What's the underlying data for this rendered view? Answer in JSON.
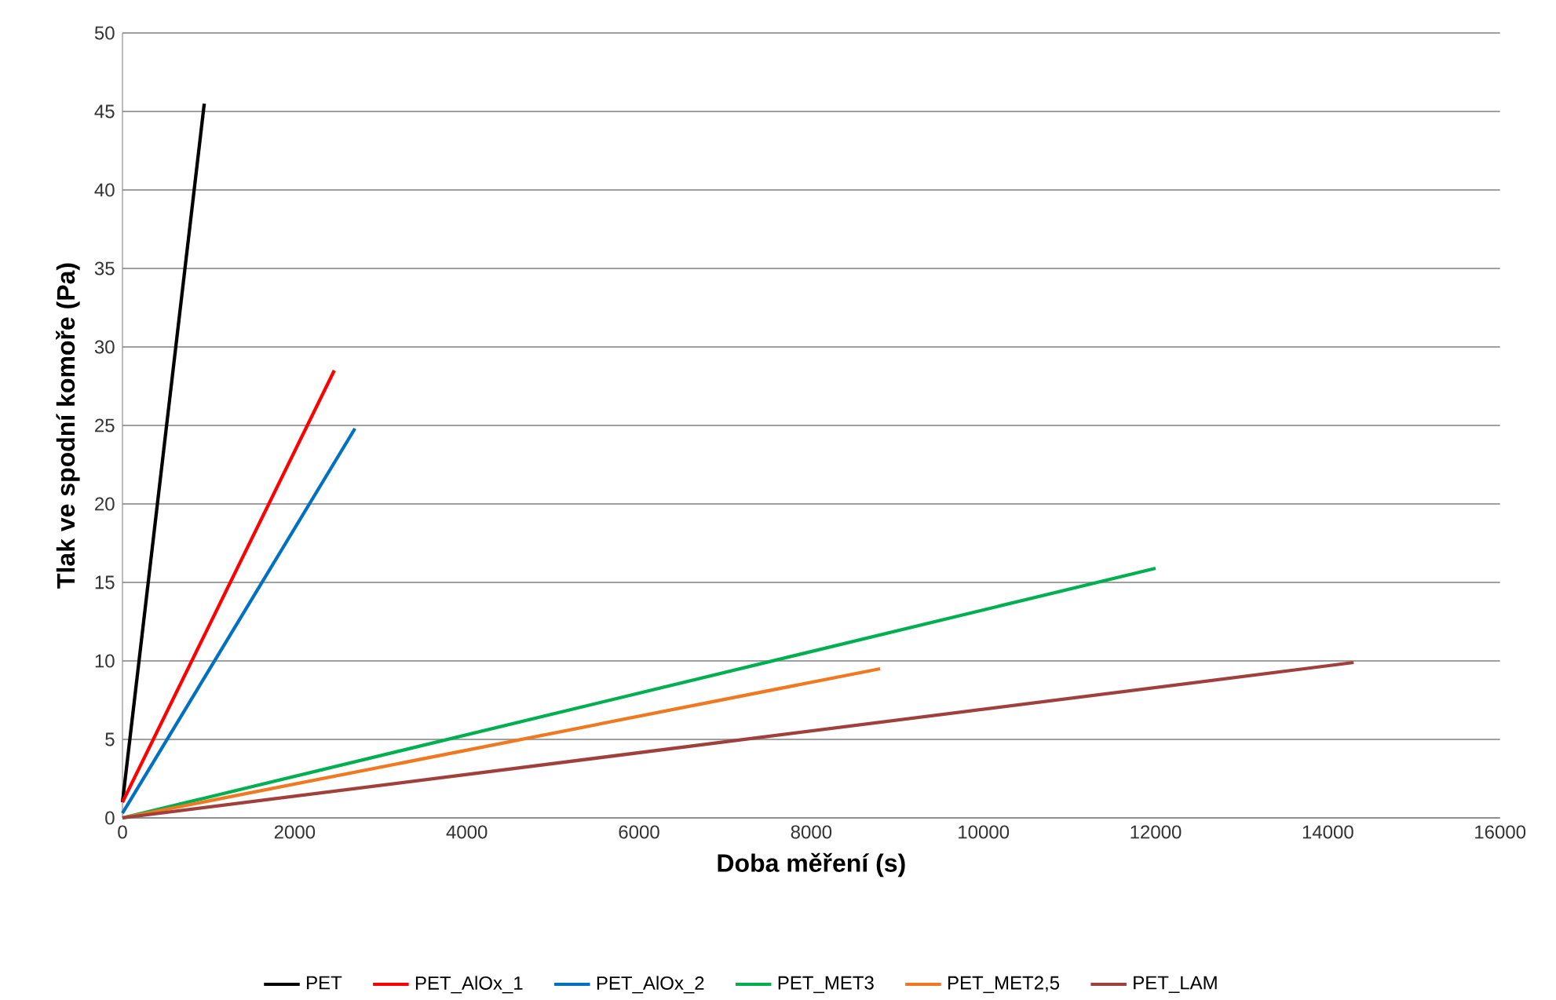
{
  "chart_data": {
    "type": "line",
    "xlabel": "Doba měření (s)",
    "ylabel": "Tlak ve spodní komoře (Pa)",
    "xlim": [
      0,
      16000
    ],
    "ylim": [
      0,
      50
    ],
    "xticks": [
      0,
      2000,
      4000,
      6000,
      8000,
      10000,
      12000,
      14000,
      16000
    ],
    "yticks": [
      0,
      5,
      10,
      15,
      20,
      25,
      30,
      35,
      40,
      45,
      50
    ],
    "grid": "y",
    "legend": "bottom",
    "marker": "none",
    "line_style": "solid",
    "series": [
      {
        "name": "PET",
        "color": "#000000",
        "x": [
          0,
          950
        ],
        "values": [
          1,
          45.5
        ]
      },
      {
        "name": "PET_AlOx_1",
        "color": "#ff0000",
        "x": [
          0,
          2460
        ],
        "values": [
          1,
          28.5
        ]
      },
      {
        "name": "PET_AlOx_2",
        "color": "#0070c0",
        "x": [
          0,
          2700
        ],
        "values": [
          0.3,
          24.8
        ]
      },
      {
        "name": "PET_MET3",
        "color": "#00b050",
        "x": [
          0,
          12000
        ],
        "values": [
          0,
          15.9
        ]
      },
      {
        "name": "PET_MET2,5",
        "color": "#f07820",
        "x": [
          0,
          8800
        ],
        "values": [
          0,
          9.5
        ]
      },
      {
        "name": "PET_LAM",
        "color": "#a0403c",
        "x": [
          0,
          14300
        ],
        "values": [
          0,
          9.9
        ]
      }
    ]
  }
}
